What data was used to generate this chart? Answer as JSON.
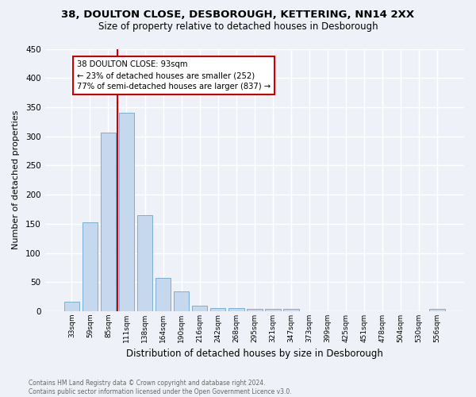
{
  "title_line1": "38, DOULTON CLOSE, DESBOROUGH, KETTERING, NN14 2XX",
  "title_line2": "Size of property relative to detached houses in Desborough",
  "xlabel": "Distribution of detached houses by size in Desborough",
  "ylabel": "Number of detached properties",
  "footer_line1": "Contains HM Land Registry data © Crown copyright and database right 2024.",
  "footer_line2": "Contains public sector information licensed under the Open Government Licence v3.0.",
  "bar_labels": [
    "33sqm",
    "59sqm",
    "85sqm",
    "111sqm",
    "138sqm",
    "164sqm",
    "190sqm",
    "216sqm",
    "242sqm",
    "268sqm",
    "295sqm",
    "321sqm",
    "347sqm",
    "373sqm",
    "399sqm",
    "425sqm",
    "451sqm",
    "478sqm",
    "504sqm",
    "530sqm",
    "556sqm"
  ],
  "bar_values": [
    17,
    152,
    306,
    340,
    165,
    57,
    34,
    10,
    6,
    5,
    4,
    4,
    4,
    0,
    0,
    0,
    0,
    0,
    0,
    0,
    4
  ],
  "bar_color": "#c5d8ed",
  "bar_edge_color": "#7bafd4",
  "vline_color": "#cc0000",
  "annotation_title": "38 DOULTON CLOSE: 93sqm",
  "annotation_line1": "← 23% of detached houses are smaller (252)",
  "annotation_line2": "77% of semi-detached houses are larger (837) →",
  "annotation_box_color": "#cc0000",
  "ylim": [
    0,
    450
  ],
  "yticks": [
    0,
    50,
    100,
    150,
    200,
    250,
    300,
    350,
    400,
    450
  ],
  "background_color": "#eef2f8",
  "plot_bg_color": "#eef2f8",
  "grid_color": "#ffffff"
}
